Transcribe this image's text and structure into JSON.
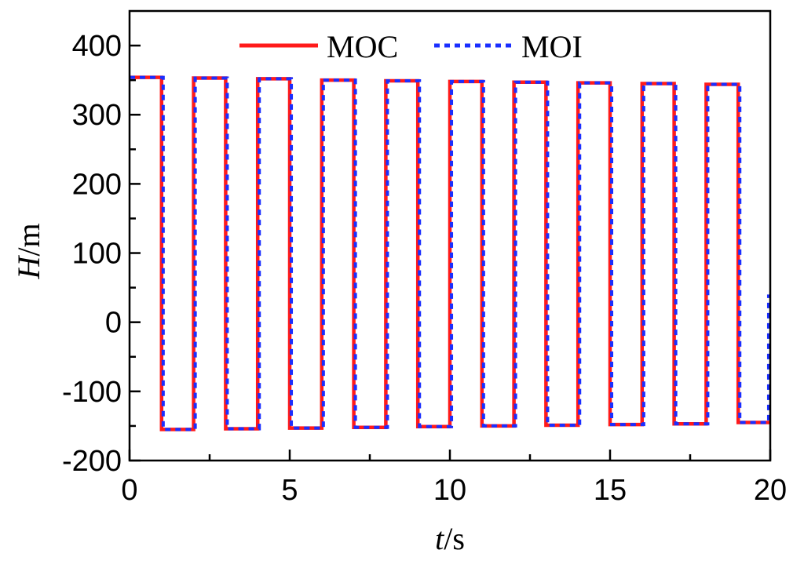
{
  "chart_data": {
    "type": "line",
    "title": "",
    "xlabel": {
      "var": "t",
      "unit": "/s"
    },
    "ylabel": {
      "var": "H",
      "unit": "/m"
    },
    "xlim": [
      0,
      20
    ],
    "ylim": [
      -200,
      450
    ],
    "xticks": [
      0,
      5,
      10,
      15,
      20
    ],
    "yticks": [
      -200,
      -100,
      0,
      100,
      200,
      300,
      400
    ],
    "legend": "top-center",
    "grid": false,
    "series": [
      {
        "name": "MOC",
        "color": "#ff1a1a",
        "style": "solid",
        "x": [
          0,
          1,
          1,
          2,
          2,
          3,
          3,
          4,
          4,
          5,
          5,
          6,
          6,
          7,
          7,
          8,
          8,
          9,
          9,
          10,
          10,
          11,
          11,
          12,
          12,
          13,
          13,
          14,
          14,
          15,
          15,
          16,
          16,
          17,
          17,
          18,
          18,
          19,
          19,
          20
        ],
        "y": [
          354,
          354,
          -155,
          -155,
          353,
          353,
          -154,
          -154,
          352,
          352,
          -153,
          -153,
          350,
          350,
          -152,
          -152,
          349,
          349,
          -151,
          -151,
          348,
          348,
          -150,
          -150,
          347,
          347,
          -149,
          -149,
          346,
          346,
          -148,
          -148,
          345,
          345,
          -147,
          -147,
          344,
          344,
          -145,
          -145
        ]
      },
      {
        "name": "MOI",
        "color": "#1a2eff",
        "style": "dotted",
        "x": [
          0,
          1.05,
          1.05,
          2.05,
          2.05,
          3.05,
          3.05,
          4.05,
          4.05,
          5.05,
          5.05,
          6.05,
          6.05,
          7.05,
          7.05,
          8.05,
          8.05,
          9.05,
          9.05,
          10.05,
          10.05,
          11.05,
          11.05,
          12.05,
          12.05,
          13.05,
          13.05,
          14.05,
          14.05,
          15.05,
          15.05,
          16.05,
          16.05,
          17.05,
          17.05,
          18.05,
          18.05,
          19.05,
          19.05,
          19.95,
          19.95
        ],
        "y": [
          354,
          354,
          -155,
          -155,
          353,
          353,
          -154,
          -154,
          352,
          352,
          -153,
          -153,
          350,
          350,
          -152,
          -152,
          349,
          349,
          -151,
          -151,
          348,
          348,
          -150,
          -150,
          347,
          347,
          -149,
          -149,
          346,
          346,
          -148,
          -148,
          345,
          345,
          -147,
          -147,
          344,
          344,
          -145,
          -145,
          40
        ]
      }
    ]
  }
}
